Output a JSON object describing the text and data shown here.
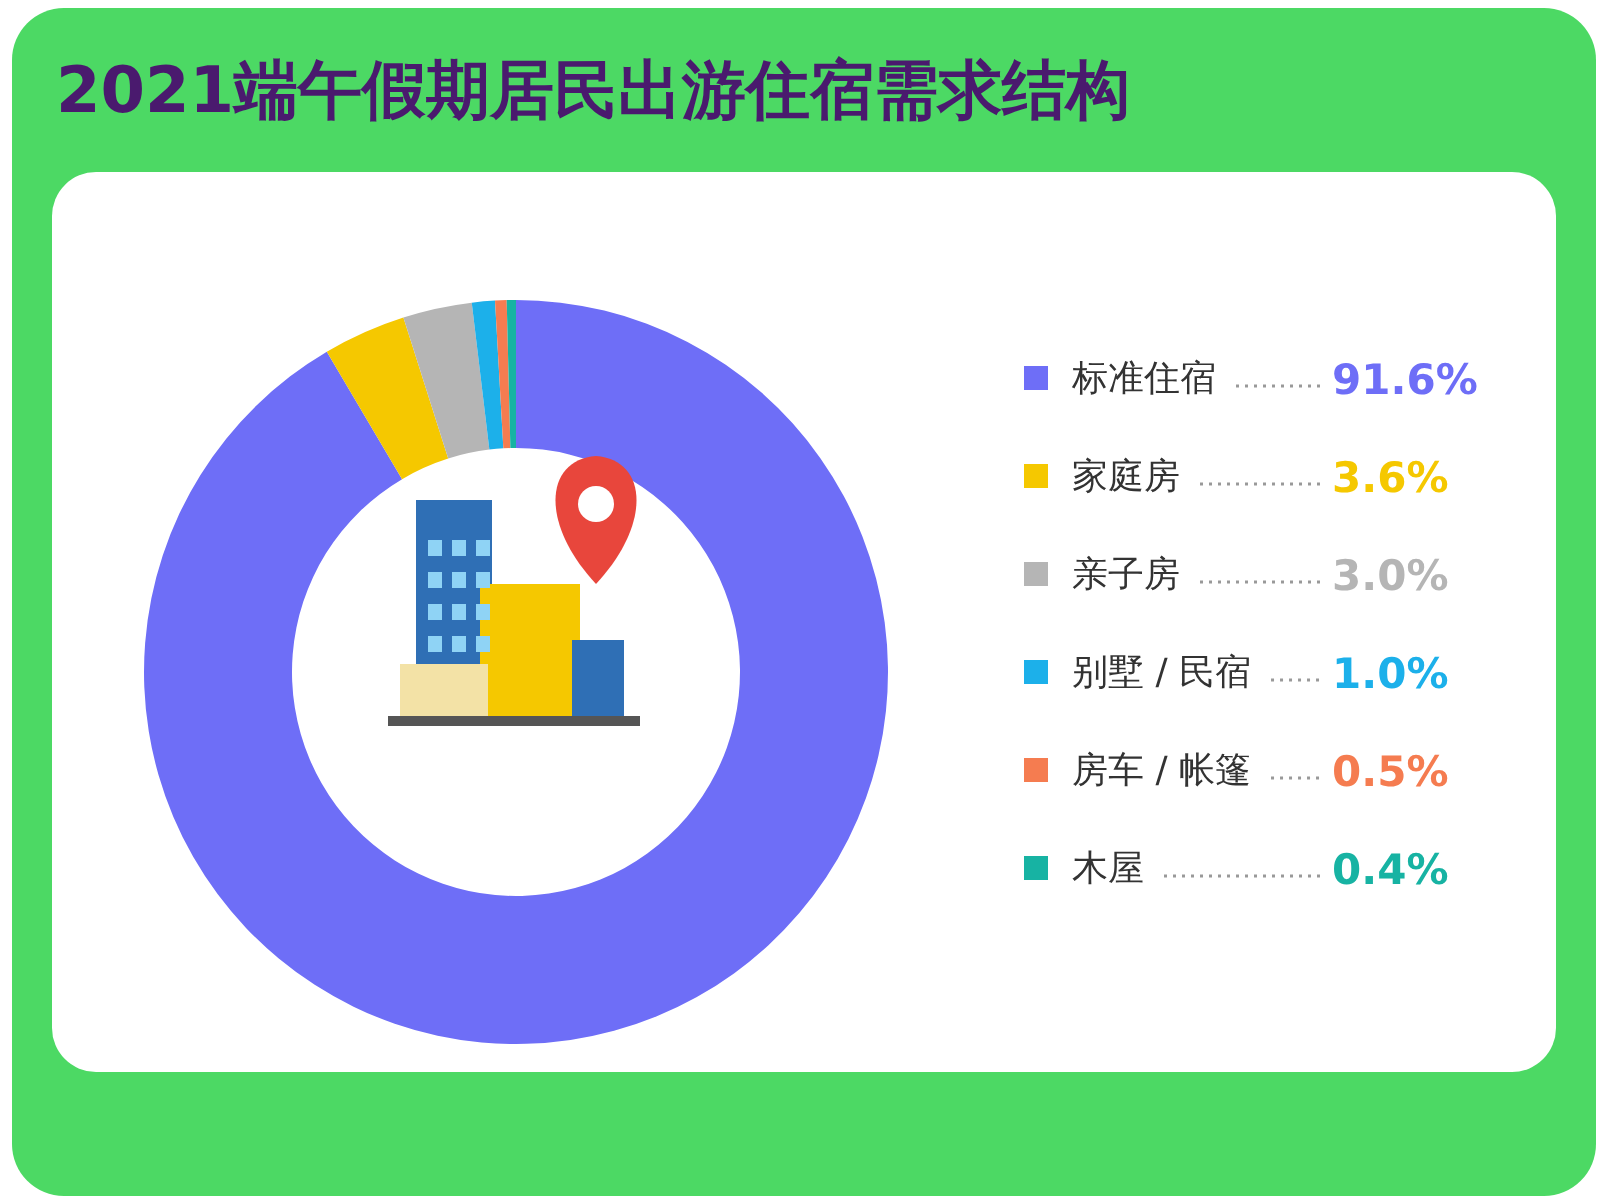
{
  "chart_data": {
    "type": "donut",
    "title": "2021端午假期居民出游住宿需求结构",
    "categories": [
      "标准住宿",
      "家庭房",
      "亲子房",
      "别墅 / 民宿",
      "房车 / 帐篷",
      "木屋"
    ],
    "values": [
      91.6,
      3.6,
      3.0,
      1.0,
      0.5,
      0.4
    ],
    "value_labels": [
      "91.6%",
      "3.6%",
      "3.0%",
      "1.0%",
      "0.5%",
      "0.4%"
    ],
    "colors": [
      "#6e6ef7",
      "#f5c800",
      "#b5b5b5",
      "#1cb0ea",
      "#f57c50",
      "#17b3a3"
    ],
    "legend": "right"
  }
}
